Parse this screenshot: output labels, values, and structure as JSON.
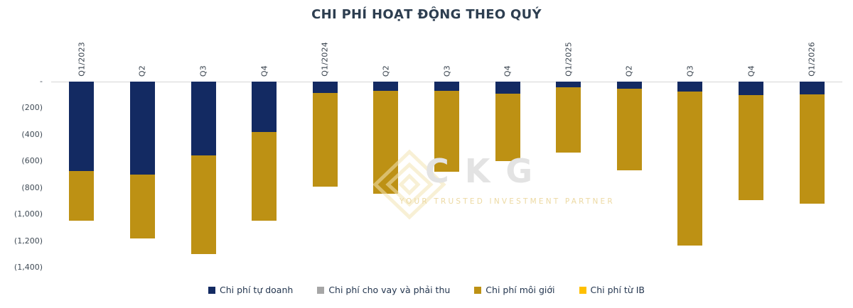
{
  "chart_data": {
    "type": "bar",
    "stacked": true,
    "direction": "negative-down",
    "title": "CHI PHÍ HOẠT ĐỘNG THEO QUÝ",
    "categories": [
      "Q1/2023",
      "Q2",
      "Q3",
      "Q4",
      "Q1/2024",
      "Q2",
      "Q3",
      "Q4",
      "Q1/2025",
      "Q2",
      "Q3",
      "Q4",
      "Q1/2026"
    ],
    "series": [
      {
        "name": "Chi phí tự doanh",
        "color": "#132a62",
        "values": [
          -675,
          -700,
          -555,
          -380,
          -85,
          -70,
          -70,
          -90,
          -45,
          -55,
          -75,
          -100,
          -95
        ]
      },
      {
        "name": "Chi phí cho vay và phải thu",
        "color": "#a6a6a6",
        "values": [
          0,
          0,
          0,
          0,
          0,
          0,
          0,
          0,
          0,
          0,
          0,
          0,
          0
        ]
      },
      {
        "name": "Chi phí môi giới",
        "color": "#bd9114",
        "values": [
          -370,
          -480,
          -745,
          -665,
          -705,
          -775,
          -610,
          -510,
          -490,
          -615,
          -1160,
          -790,
          -825
        ]
      },
      {
        "name": "Chi phí từ IB",
        "color": "#ffc000",
        "values": [
          0,
          0,
          0,
          0,
          0,
          0,
          0,
          0,
          0,
          0,
          0,
          0,
          0
        ]
      }
    ],
    "y_axis": {
      "tick_labels": [
        "-",
        "(200)",
        "(400)",
        "(600)",
        "(800)",
        "(1,000)",
        "(1,200)",
        "(1,400)"
      ],
      "tick_values": [
        0,
        -200,
        -400,
        -600,
        -800,
        -1000,
        -1200,
        -1400
      ],
      "min": -1400,
      "max": 0
    },
    "xlabel": "",
    "ylabel": "",
    "grid": false,
    "legend_position": "bottom"
  },
  "watermark": {
    "logo_text": "CKG",
    "tagline": "YOUR TRUSTED INVESTMENT PARTNER"
  },
  "colors": {
    "title": "#2d3e50",
    "axis_line": "#d6d6d6",
    "axis_text": "#3f4a55",
    "legend_text": "#24364f"
  }
}
